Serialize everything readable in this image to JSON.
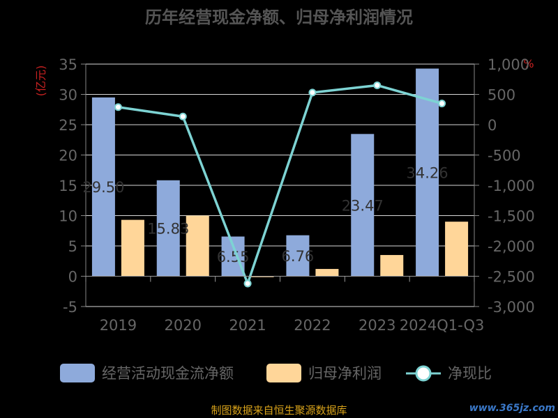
{
  "chart_data": {
    "type": "bar",
    "title": "历年经营现金净额、归母净利润情况",
    "categories": [
      "2019",
      "2020",
      "2021",
      "2022",
      "2023",
      "2024Q1-Q3"
    ],
    "series": [
      {
        "name": "经营活动现金流净额",
        "type": "bar",
        "axis": "left",
        "color": "#8eaadb",
        "values": [
          29.5,
          15.83,
          6.55,
          6.76,
          23.47,
          34.26
        ],
        "data_labels": [
          "29.50",
          "15.83",
          "6.55",
          "6.76",
          "23.47",
          "34.26"
        ]
      },
      {
        "name": "归母净利润",
        "type": "bar",
        "axis": "left",
        "color": "#ffd699",
        "values": [
          9.3,
          10.0,
          -0.15,
          1.2,
          3.5,
          9.0
        ]
      },
      {
        "name": "净现比",
        "type": "line",
        "axis": "right",
        "color": "#7dd3d3",
        "values": [
          290,
          135,
          -2620,
          530,
          650,
          350
        ]
      }
    ],
    "left_axis": {
      "label": "(亿元)",
      "min": -5,
      "max": 35,
      "step": 5,
      "ticks": [
        "-5",
        "0",
        "5",
        "10",
        "15",
        "20",
        "25",
        "30",
        "35"
      ]
    },
    "right_axis": {
      "label": "%",
      "min": -3000,
      "max": 1000,
      "step": 500,
      "ticks": [
        "-3,000",
        "-2,500",
        "-2,000",
        "-1,500",
        "-1,000",
        "-500",
        "0",
        "500",
        "1,000"
      ]
    },
    "grid": true,
    "legend_position": "bottom",
    "source": "制图数据来自恒生聚源数据库",
    "watermark": "www.365jz.com"
  }
}
